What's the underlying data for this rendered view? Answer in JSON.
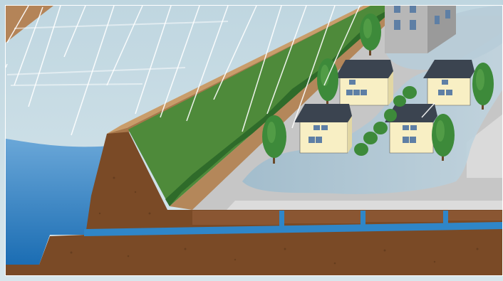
{
  "scene": {
    "subject": "levee-inland-flooding-illustration",
    "colors": {
      "sky": "#c9dde6",
      "river": "#2f86c8",
      "river_dark": "#1a6cb0",
      "soil": "#7a4a26",
      "soil_dark": "#5d3519",
      "embankment_top": "#c99d6a",
      "grass": "#4e8a3a",
      "grass_dark": "#2f6b2a",
      "ground": "#c4c4c4",
      "pavement": "#dcdcdc",
      "flood_water": "#a9c3d4",
      "house_wall": "#f8efc4",
      "roof": "#3b4450",
      "tree": "#3d8a3a",
      "rain": "#ffffff"
    },
    "houses": [
      {
        "name": "house-front-left"
      },
      {
        "name": "house-front-right"
      },
      {
        "name": "house-back-left"
      },
      {
        "name": "house-back-right"
      },
      {
        "name": "apartment-building"
      }
    ],
    "trees_count_visible": 9
  }
}
